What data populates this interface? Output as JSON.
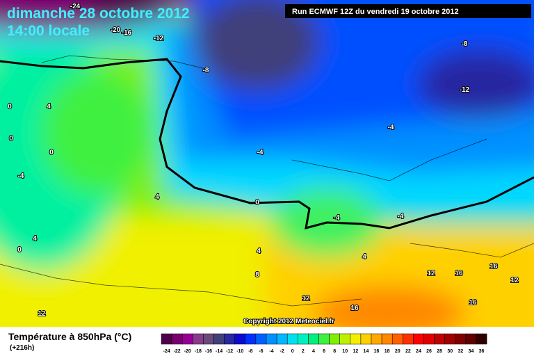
{
  "header": {
    "date": "dimanche 28 octobre 2012",
    "time": "14:00 locale",
    "run": "Run ECMWF 12Z du vendredi 19 octobre 2012"
  },
  "map": {
    "copyright": "Copyright 2012 Meteociel.fr",
    "contour_labels": [
      "-24",
      "-20",
      "-16",
      "-12",
      "-8",
      "-8",
      "-12",
      "-4",
      "-4",
      "-4",
      "-4",
      "-4",
      "0",
      "0",
      "0",
      "0",
      "0",
      "4",
      "4",
      "4",
      "4",
      "4",
      "8",
      "12",
      "12",
      "12",
      "12",
      "16",
      "16",
      "16",
      "16"
    ]
  },
  "legend": {
    "title": "Température à 850hPa (°C)",
    "lead": "(+216h)",
    "values": [
      -24,
      -22,
      -20,
      -18,
      -16,
      -14,
      -12,
      -10,
      -8,
      -6,
      -4,
      -2,
      0,
      2,
      4,
      6,
      8,
      10,
      12,
      14,
      16,
      18,
      20,
      22,
      24,
      26,
      28,
      30,
      32,
      34,
      36
    ],
    "colors": [
      "#50004a",
      "#7a0070",
      "#960096",
      "#8a3a8a",
      "#6a4a7a",
      "#40407a",
      "#2828a0",
      "#0a0ad0",
      "#0030ff",
      "#0060ff",
      "#0090ff",
      "#00b8ff",
      "#00e0f0",
      "#00f0c0",
      "#00f080",
      "#40f040",
      "#80f000",
      "#c0f000",
      "#f0f000",
      "#ffd000",
      "#ffa800",
      "#ff8800",
      "#ff6000",
      "#ff3000",
      "#ff0000",
      "#e00000",
      "#c00000",
      "#a00000",
      "#800000",
      "#600000",
      "#300000"
    ]
  }
}
